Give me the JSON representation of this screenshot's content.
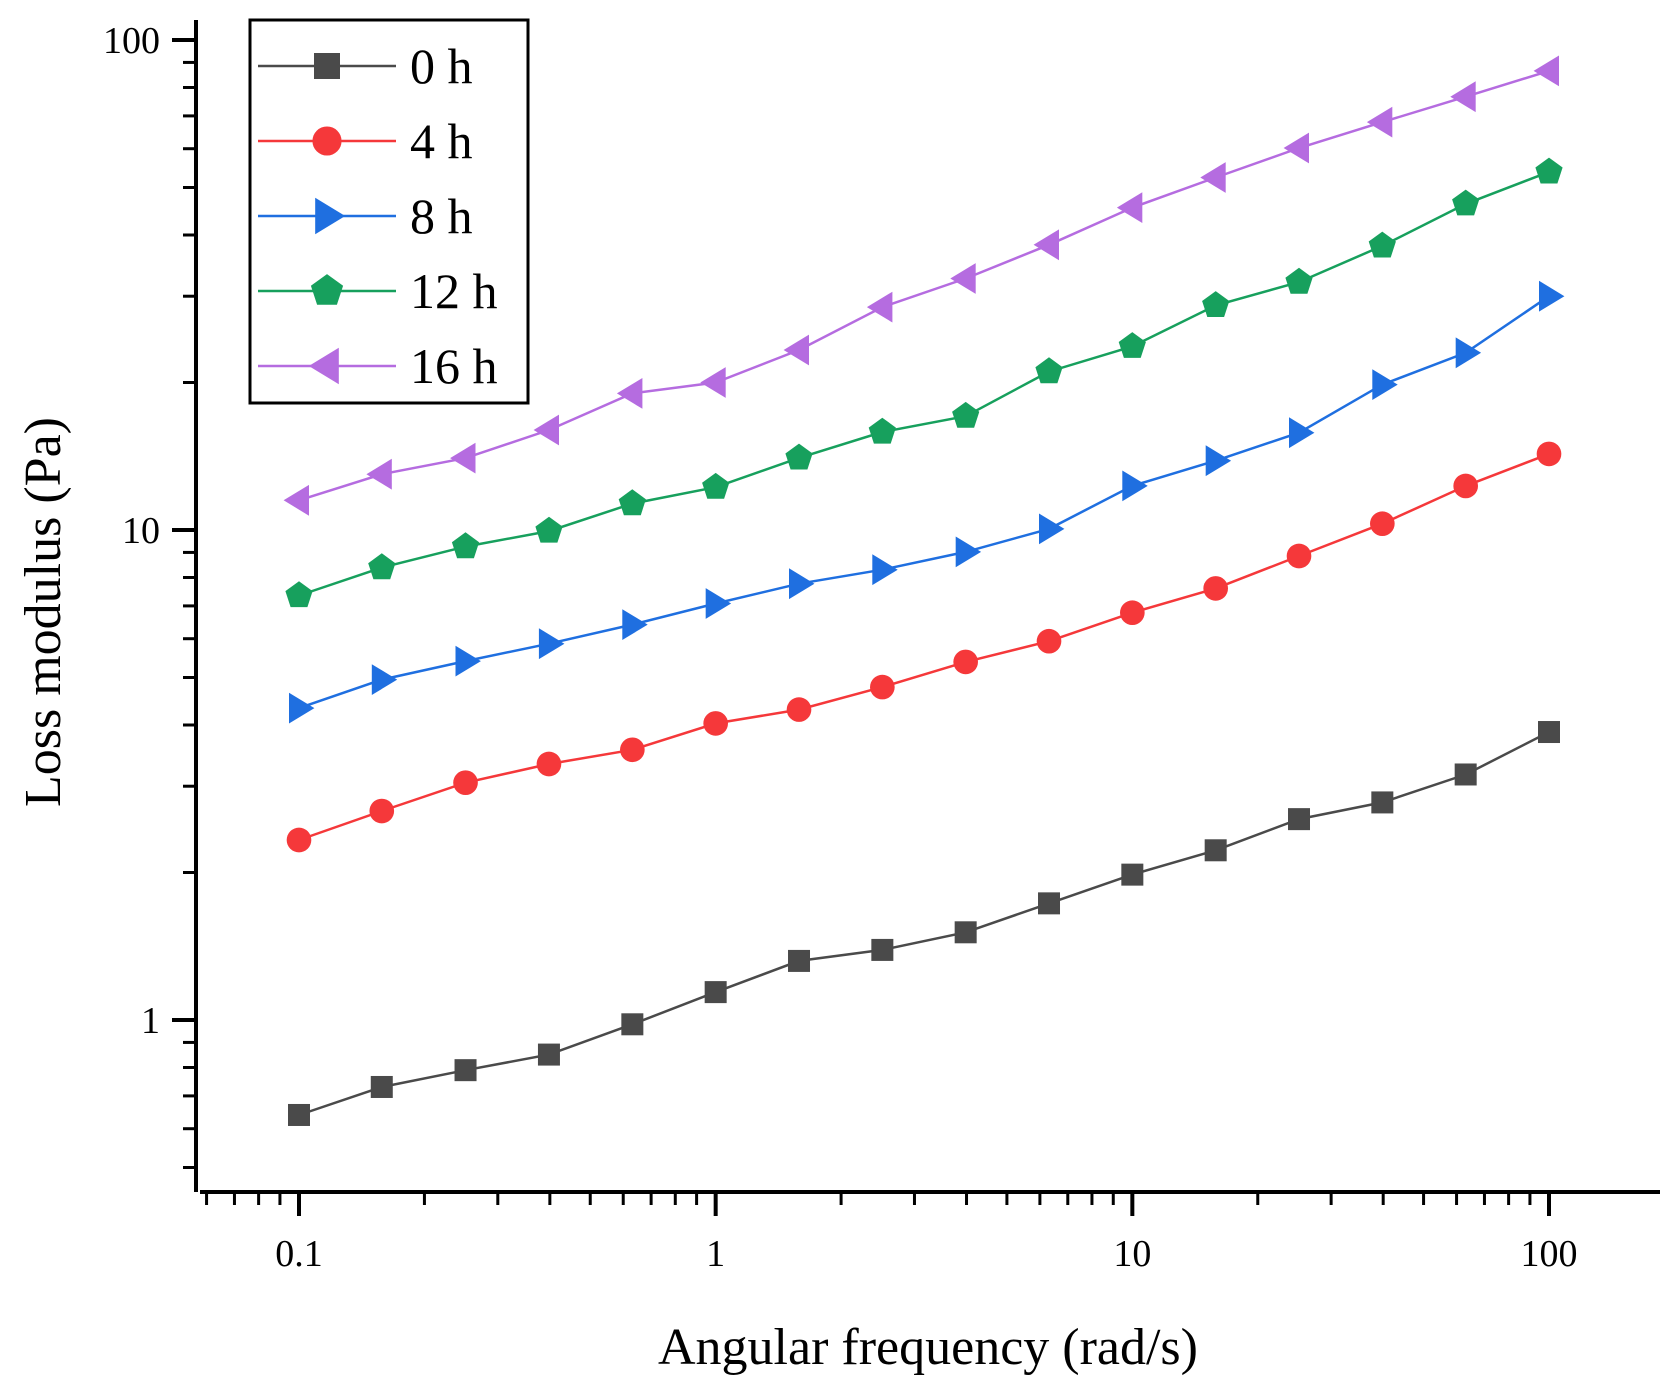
{
  "chart_data": {
    "type": "line",
    "xscale": "log",
    "yscale": "log",
    "xlabel": "Angular frequency (rad/s)",
    "ylabel": "Loss modulus (Pa)",
    "xlim": [
      0.06,
      160
    ],
    "ylim": [
      0.45,
      100
    ],
    "x_ticks": [
      0.1,
      1,
      10,
      100
    ],
    "x_tick_labels": [
      "0.1",
      "1",
      "10",
      "100"
    ],
    "y_ticks": [
      1,
      10,
      100
    ],
    "y_tick_labels": [
      "1",
      "10",
      "100"
    ],
    "x": [
      0.1,
      0.158,
      0.251,
      0.398,
      0.631,
      1,
      1.585,
      2.512,
      3.981,
      6.31,
      10,
      15.85,
      25.12,
      39.81,
      63.1,
      100
    ],
    "legend_position": "top-left",
    "series": [
      {
        "name": "0 h",
        "color": "#4a4a4a",
        "marker": "square",
        "values": [
          0.64,
          0.73,
          0.79,
          0.85,
          0.98,
          1.14,
          1.32,
          1.39,
          1.51,
          1.73,
          1.98,
          2.22,
          2.57,
          2.78,
          3.17,
          3.87
        ]
      },
      {
        "name": "4 h",
        "color": "#f5383a",
        "marker": "circle",
        "values": [
          2.33,
          2.67,
          3.05,
          3.33,
          3.56,
          4.03,
          4.3,
          4.78,
          5.38,
          5.93,
          6.78,
          7.6,
          8.85,
          10.3,
          12.3,
          14.3
        ]
      },
      {
        "name": "8 h",
        "color": "#1f6fe0",
        "marker": "triangle-right",
        "values": [
          4.33,
          4.95,
          5.4,
          5.86,
          6.41,
          7.08,
          7.77,
          8.3,
          9.02,
          10.05,
          12.3,
          13.85,
          15.8,
          19.8,
          23.0,
          30.0
        ]
      },
      {
        "name": "12 h",
        "color": "#17a05d",
        "marker": "pentagon",
        "values": [
          7.35,
          8.38,
          9.25,
          9.95,
          11.32,
          12.23,
          14.03,
          15.85,
          17.07,
          21.05,
          23.7,
          28.73,
          32.05,
          38.0,
          46.3,
          53.8
        ]
      },
      {
        "name": "16 h",
        "color": "#b56ce0",
        "marker": "triangle-left",
        "values": [
          11.5,
          13.0,
          14.02,
          16.0,
          19.0,
          20.0,
          23.3,
          28.5,
          32.6,
          38.2,
          45.5,
          52.4,
          60.2,
          68.0,
          76.6,
          86.5
        ]
      }
    ]
  }
}
